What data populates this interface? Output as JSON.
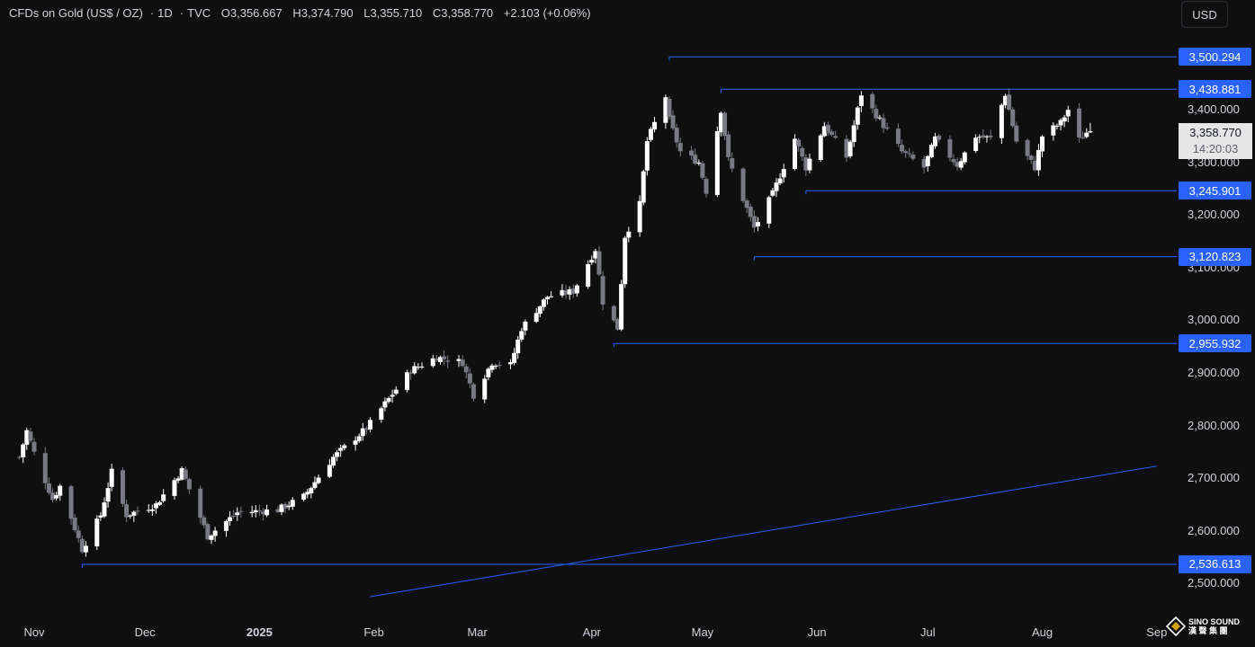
{
  "header": {
    "symbol": "CFDs on Gold (US$ / OZ)",
    "interval": "1D",
    "source": "TVC",
    "sep": "·",
    "open_label": "O",
    "open": "3,356.667",
    "high_label": "H",
    "high": "3,374.790",
    "low_label": "L",
    "low": "3,355.710",
    "close_label": "C",
    "close": "3,358.770",
    "change": "+2.103 (+0.06%)"
  },
  "currency_button": "USD",
  "price_tag": {
    "price": "3,358.770",
    "countdown": "14:20:03"
  },
  "watermark": {
    "line1": "SINO SOUND",
    "line2": "漢 聲 集 團"
  },
  "colors": {
    "background": "#0f0f0f",
    "candle_up": "#ffffff",
    "candle_down": "#787b86",
    "level_line": "#2962ff",
    "text": "#d1d4dc"
  },
  "chart_data": {
    "type": "candlestick",
    "y_axis": {
      "ticks": [
        "3,400.000",
        "3,300.000",
        "3,200.000",
        "3,100.000",
        "3,000.000",
        "2,900.000",
        "2,800.000",
        "2,700.000",
        "2,600.000",
        "2,500.000"
      ],
      "tick_values": [
        3400,
        3300,
        3200,
        3100,
        3000,
        2900,
        2800,
        2700,
        2600,
        2500
      ],
      "range": [
        2475,
        3595
      ]
    },
    "x_axis": {
      "ticks": [
        "Nov",
        "Dec",
        "2025",
        "Feb",
        "Mar",
        "Apr",
        "May",
        "Jun",
        "Jul",
        "Aug",
        "Sep"
      ],
      "tick_dates": [
        "2024-11-01",
        "2024-12-01",
        "2025-01-01",
        "2025-02-01",
        "2025-03-01",
        "2025-04-01",
        "2025-05-01",
        "2025-06-01",
        "2025-07-01",
        "2025-08-01",
        "2025-09-01"
      ],
      "bold_tick": "2025"
    },
    "horizontal_levels": [
      {
        "label": "3,500.294",
        "value": 3500.294,
        "from_date": "2025-04-22"
      },
      {
        "label": "3,438.881",
        "value": 3438.881,
        "from_date": "2025-05-06"
      },
      {
        "label": "3,245.901",
        "value": 3245.901,
        "from_date": "2025-05-29"
      },
      {
        "label": "3,120.823",
        "value": 3120.823,
        "from_date": "2025-05-15"
      },
      {
        "label": "2,955.932",
        "value": 2955.932,
        "from_date": "2025-04-07"
      },
      {
        "label": "2,536.613",
        "value": 2536.613,
        "from_date": "2024-11-14"
      }
    ],
    "trendline": {
      "start": {
        "date": "2025-01-31",
        "value": 2475
      },
      "end": {
        "date": "2025-09-01",
        "value": 2723
      }
    },
    "anchors": [
      [
        "2024-10-28",
        2740
      ],
      [
        "2024-10-30",
        2790
      ],
      [
        "2024-11-01",
        2748
      ],
      [
        "2024-11-06",
        2660
      ],
      [
        "2024-11-08",
        2685
      ],
      [
        "2024-11-14",
        2565
      ],
      [
        "2024-11-19",
        2630
      ],
      [
        "2024-11-22",
        2712
      ],
      [
        "2024-11-26",
        2630
      ],
      [
        "2024-12-04",
        2650
      ],
      [
        "2024-12-11",
        2715
      ],
      [
        "2024-12-18",
        2590
      ],
      [
        "2024-12-26",
        2635
      ],
      [
        "2025-01-06",
        2640
      ],
      [
        "2025-01-13",
        2665
      ],
      [
        "2025-01-21",
        2740
      ],
      [
        "2025-01-30",
        2795
      ],
      [
        "2025-02-06",
        2860
      ],
      [
        "2025-02-11",
        2905
      ],
      [
        "2025-02-18",
        2930
      ],
      [
        "2025-02-25",
        2920
      ],
      [
        "2025-02-28",
        2858
      ],
      [
        "2025-03-05",
        2920
      ],
      [
        "2025-03-10",
        2915
      ],
      [
        "2025-03-13",
        2985
      ],
      [
        "2025-03-20",
        3045
      ],
      [
        "2025-03-27",
        3055
      ],
      [
        "2025-04-02",
        3135
      ],
      [
        "2025-04-04",
        3035
      ],
      [
        "2025-04-08",
        2985
      ],
      [
        "2025-04-10",
        3160
      ],
      [
        "2025-04-14",
        3220
      ],
      [
        "2025-04-16",
        3340
      ],
      [
        "2025-04-21",
        3425
      ],
      [
        "2025-04-22",
        3380
      ],
      [
        "2025-04-25",
        3320
      ],
      [
        "2025-04-30",
        3300
      ],
      [
        "2025-05-02",
        3245
      ],
      [
        "2025-05-06",
        3400
      ],
      [
        "2025-05-08",
        3305
      ],
      [
        "2025-05-12",
        3230
      ],
      [
        "2025-05-15",
        3175
      ],
      [
        "2025-05-20",
        3240
      ],
      [
        "2025-05-26",
        3345
      ],
      [
        "2025-05-29",
        3290
      ],
      [
        "2025-06-03",
        3370
      ],
      [
        "2025-06-09",
        3310
      ],
      [
        "2025-06-13",
        3430
      ],
      [
        "2025-06-19",
        3370
      ],
      [
        "2025-06-24",
        3320
      ],
      [
        "2025-06-30",
        3290
      ],
      [
        "2025-07-03",
        3345
      ],
      [
        "2025-07-09",
        3295
      ],
      [
        "2025-07-14",
        3350
      ],
      [
        "2025-07-18",
        3345
      ],
      [
        "2025-07-22",
        3430
      ],
      [
        "2025-07-25",
        3340
      ],
      [
        "2025-07-30",
        3290
      ],
      [
        "2025-08-01",
        3350
      ],
      [
        "2025-08-06",
        3375
      ],
      [
        "2025-08-08",
        3400
      ],
      [
        "2025-08-11",
        3342
      ],
      [
        "2025-08-13",
        3356.667
      ],
      [
        "2025-08-14",
        3358.77
      ]
    ],
    "last_candle": {
      "date": "2025-08-14",
      "open": 3356.667,
      "high": 3374.79,
      "low": 3355.71,
      "close": 3358.77
    }
  }
}
